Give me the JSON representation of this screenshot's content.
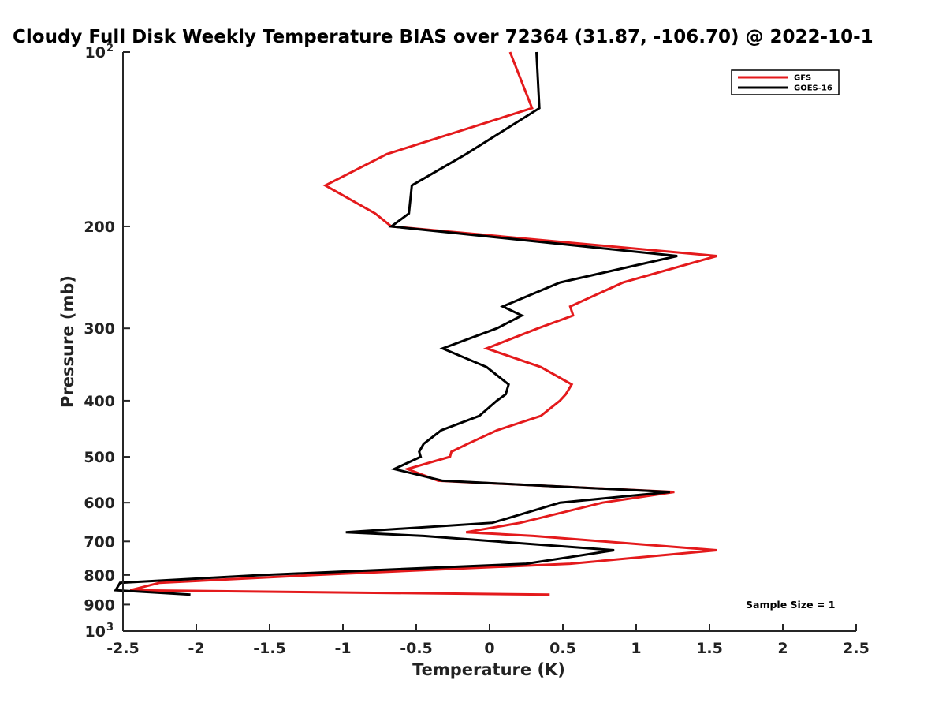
{
  "chart_data": {
    "type": "line",
    "title": "Cloudy Full Disk Weekly Temperature BIAS over 72364 (31.87, -106.70) @ 2022-10-1",
    "xlabel": "Temperature (K)",
    "ylabel": "Pressure (mb)",
    "xlim": [
      -2.5,
      2.5
    ],
    "ylim": [
      100,
      1000
    ],
    "y_scale": "log",
    "y_reversed": true,
    "grid": false,
    "legend_position": "top-right",
    "x_ticks": [
      {
        "value": -2.5,
        "label": "-2.5"
      },
      {
        "value": -2,
        "label": "-2"
      },
      {
        "value": -1.5,
        "label": "-1.5"
      },
      {
        "value": -1,
        "label": "-1"
      },
      {
        "value": -0.5,
        "label": "-0.5"
      },
      {
        "value": 0,
        "label": "0"
      },
      {
        "value": 0.5,
        "label": "0.5"
      },
      {
        "value": 1,
        "label": "1"
      },
      {
        "value": 1.5,
        "label": "1.5"
      },
      {
        "value": 2,
        "label": "2"
      },
      {
        "value": 2.5,
        "label": "2.5"
      }
    ],
    "y_ticks": [
      {
        "value": 100,
        "label": "10",
        "sup": "2"
      },
      {
        "value": 200,
        "label": "200"
      },
      {
        "value": 300,
        "label": "300"
      },
      {
        "value": 400,
        "label": "400"
      },
      {
        "value": 500,
        "label": "500"
      },
      {
        "value": 600,
        "label": "600"
      },
      {
        "value": 700,
        "label": "700"
      },
      {
        "value": 800,
        "label": "800"
      },
      {
        "value": 900,
        "label": "900"
      },
      {
        "value": 1000,
        "label": "10",
        "sup": "3"
      }
    ],
    "series": [
      {
        "name": "GFS",
        "color": "#e41a1c",
        "points": [
          {
            "x": 0.14,
            "y": 100
          },
          {
            "x": 0.29,
            "y": 125
          },
          {
            "x": -0.7,
            "y": 150
          },
          {
            "x": -1.12,
            "y": 170
          },
          {
            "x": -0.78,
            "y": 190
          },
          {
            "x": -0.67,
            "y": 200
          },
          {
            "x": 1.55,
            "y": 225
          },
          {
            "x": 0.91,
            "y": 250
          },
          {
            "x": 0.55,
            "y": 275
          },
          {
            "x": 0.57,
            "y": 285
          },
          {
            "x": 0.33,
            "y": 300
          },
          {
            "x": -0.02,
            "y": 325
          },
          {
            "x": 0.35,
            "y": 350
          },
          {
            "x": 0.56,
            "y": 375
          },
          {
            "x": 0.52,
            "y": 390
          },
          {
            "x": 0.48,
            "y": 400
          },
          {
            "x": 0.35,
            "y": 425
          },
          {
            "x": 0.05,
            "y": 450
          },
          {
            "x": -0.15,
            "y": 475
          },
          {
            "x": -0.26,
            "y": 490
          },
          {
            "x": -0.27,
            "y": 500
          },
          {
            "x": -0.56,
            "y": 525
          },
          {
            "x": -0.35,
            "y": 550
          },
          {
            "x": 1.26,
            "y": 575
          },
          {
            "x": 0.77,
            "y": 600
          },
          {
            "x": 0.21,
            "y": 650
          },
          {
            "x": -0.16,
            "y": 675
          },
          {
            "x": 0.3,
            "y": 685
          },
          {
            "x": 1.55,
            "y": 725
          },
          {
            "x": 0.55,
            "y": 765
          },
          {
            "x": -1.2,
            "y": 800
          },
          {
            "x": -2.25,
            "y": 825
          },
          {
            "x": -2.45,
            "y": 850
          },
          {
            "x": 0.41,
            "y": 865
          }
        ]
      },
      {
        "name": "GOES-16",
        "color": "#000000",
        "points": [
          {
            "x": 0.32,
            "y": 100
          },
          {
            "x": 0.34,
            "y": 125
          },
          {
            "x": -0.16,
            "y": 150
          },
          {
            "x": -0.53,
            "y": 170
          },
          {
            "x": -0.55,
            "y": 190
          },
          {
            "x": -0.67,
            "y": 200
          },
          {
            "x": 1.28,
            "y": 225
          },
          {
            "x": 0.48,
            "y": 250
          },
          {
            "x": 0.09,
            "y": 275
          },
          {
            "x": 0.22,
            "y": 285
          },
          {
            "x": 0.05,
            "y": 300
          },
          {
            "x": -0.32,
            "y": 325
          },
          {
            "x": -0.02,
            "y": 350
          },
          {
            "x": 0.13,
            "y": 375
          },
          {
            "x": 0.11,
            "y": 390
          },
          {
            "x": 0.05,
            "y": 400
          },
          {
            "x": -0.07,
            "y": 425
          },
          {
            "x": -0.33,
            "y": 450
          },
          {
            "x": -0.45,
            "y": 475
          },
          {
            "x": -0.48,
            "y": 490
          },
          {
            "x": -0.47,
            "y": 500
          },
          {
            "x": -0.65,
            "y": 525
          },
          {
            "x": -0.32,
            "y": 550
          },
          {
            "x": 1.23,
            "y": 575
          },
          {
            "x": 0.48,
            "y": 600
          },
          {
            "x": 0.02,
            "y": 650
          },
          {
            "x": -0.98,
            "y": 675
          },
          {
            "x": -0.45,
            "y": 685
          },
          {
            "x": 0.85,
            "y": 725
          },
          {
            "x": 0.25,
            "y": 765
          },
          {
            "x": -1.55,
            "y": 800
          },
          {
            "x": -2.52,
            "y": 825
          },
          {
            "x": -2.55,
            "y": 850
          },
          {
            "x": -2.04,
            "y": 865
          }
        ]
      }
    ],
    "annotations": [
      {
        "text": "Sample Size = 1"
      }
    ]
  }
}
